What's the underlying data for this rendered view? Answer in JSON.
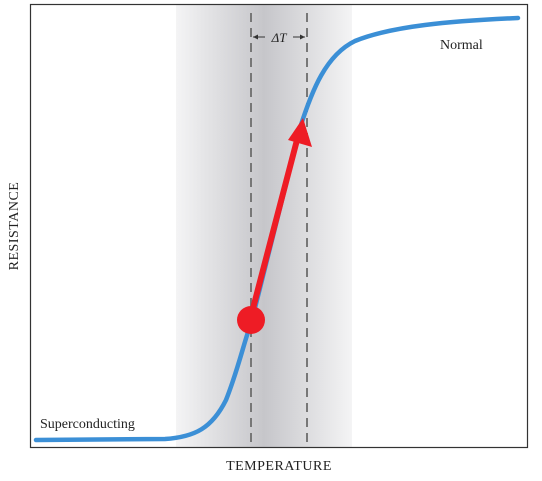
{
  "labels": {
    "xlabel": "TEMPERATURE",
    "ylabel": "RESISTANCE",
    "superconducting": "Superconducting",
    "normal": "Normal",
    "delta_t": "ΔT"
  },
  "colors": {
    "curve": "#3b8fd6",
    "arrow": "#ee1c25",
    "frame": "#333333",
    "band_edge": "#ffffff",
    "band_center": "#c8c8cc",
    "dashed": "#777777"
  }
}
